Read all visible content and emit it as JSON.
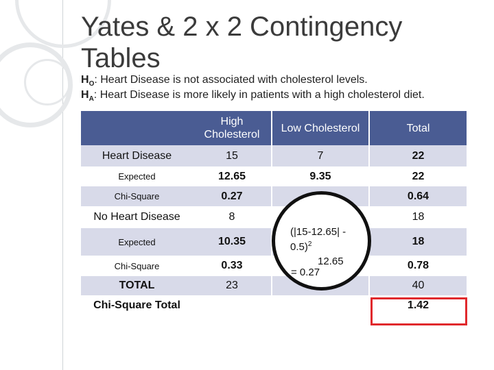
{
  "title": "Yates & 2 x 2 Contingency Tables",
  "hypotheses": {
    "h0_label": "H",
    "h0_sub": "O",
    "h0_text": ": Heart Disease is not associated with cholesterol levels.",
    "ha_label": "H",
    "ha_sub": "A",
    "ha_text": ": Heart Disease is more likely in patients with a high cholesterol diet."
  },
  "table": {
    "headers": [
      "",
      "High Cholesterol",
      "Low Cholesterol",
      "Total"
    ],
    "rows": {
      "heart_disease": {
        "label": "Heart Disease",
        "high": "15",
        "low": "7",
        "total": "22"
      },
      "expected_1": {
        "label": "Expected",
        "high": "12.65",
        "low": "9.35",
        "total": "22"
      },
      "chi_square_1": {
        "label": "Chi-Square",
        "high": "0.27",
        "low": "",
        "total": "0.64"
      },
      "no_heart_disease": {
        "label": "No Heart Disease",
        "high": "8",
        "low": "",
        "total": "18"
      },
      "expected_2": {
        "label": "Expected",
        "high": "10.35",
        "low": "",
        "total": "18"
      },
      "chi_square_2": {
        "label": "Chi-Square",
        "high": "0.33",
        "low": "",
        "total": "0.78"
      },
      "total": {
        "label": "TOTAL",
        "high": "23",
        "low": "",
        "total": "40"
      },
      "chi_square_total": {
        "label": "Chi-Square Total",
        "high": "",
        "low": "",
        "total": "1.42"
      }
    }
  },
  "callout": {
    "line1": "(|15-12.65| -",
    "line2": "0.5)",
    "line2_sup": "2",
    "line3": "12.65",
    "line4": "= 0.27"
  },
  "colors": {
    "header": "#4a5c93",
    "band": "#d8dae9",
    "highlight": "#e0282c"
  }
}
